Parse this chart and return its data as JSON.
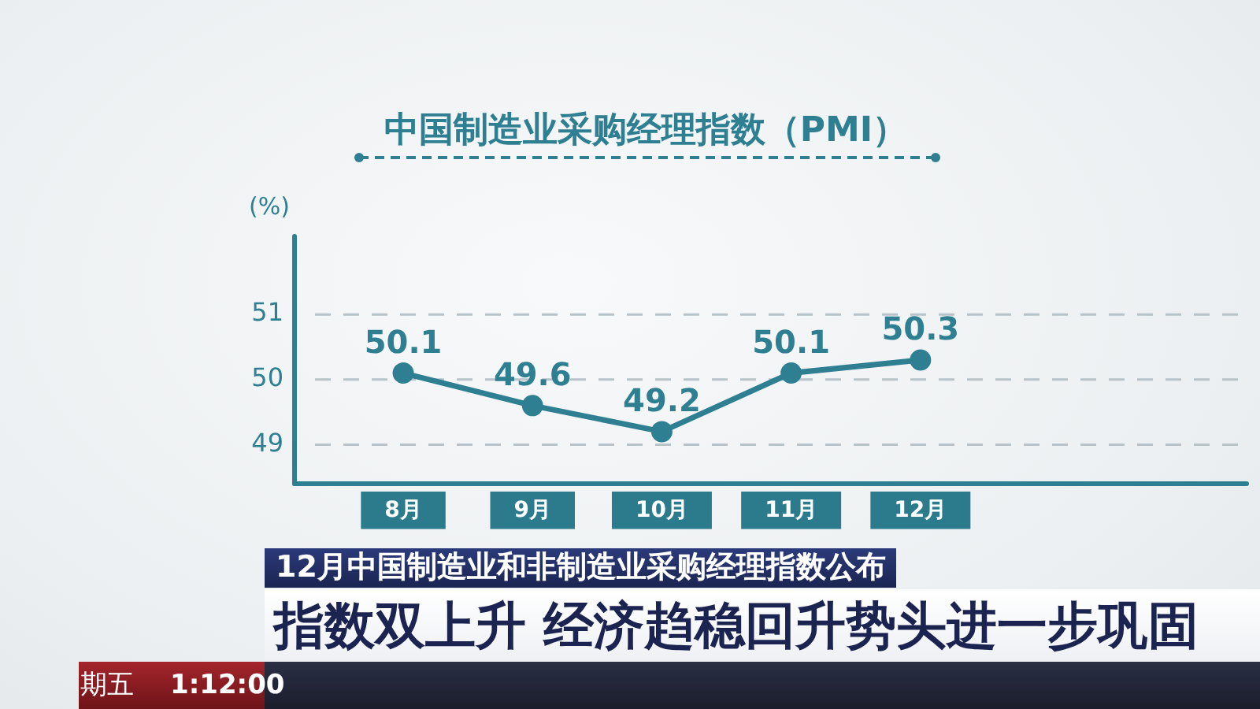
{
  "chart_data": {
    "type": "line",
    "title": "中国制造业采购经理指数（PMI）",
    "ylabel": "(%)",
    "categories": [
      "8月",
      "9月",
      "10月",
      "11月",
      "12月"
    ],
    "values": [
      50.1,
      49.6,
      49.2,
      50.1,
      50.3
    ],
    "color": "#2f7f93",
    "ylim": [
      48.4,
      52.2
    ],
    "yticks": [
      49,
      50,
      51
    ],
    "grid": "y",
    "marker": "circle",
    "data_labels": true,
    "annotations": [
      "12月中国制造业和非制造业采购经理指数公布",
      "指数双上升 经济趋稳回升势头进一步巩固",
      "期五",
      "1:12:00"
    ]
  }
}
